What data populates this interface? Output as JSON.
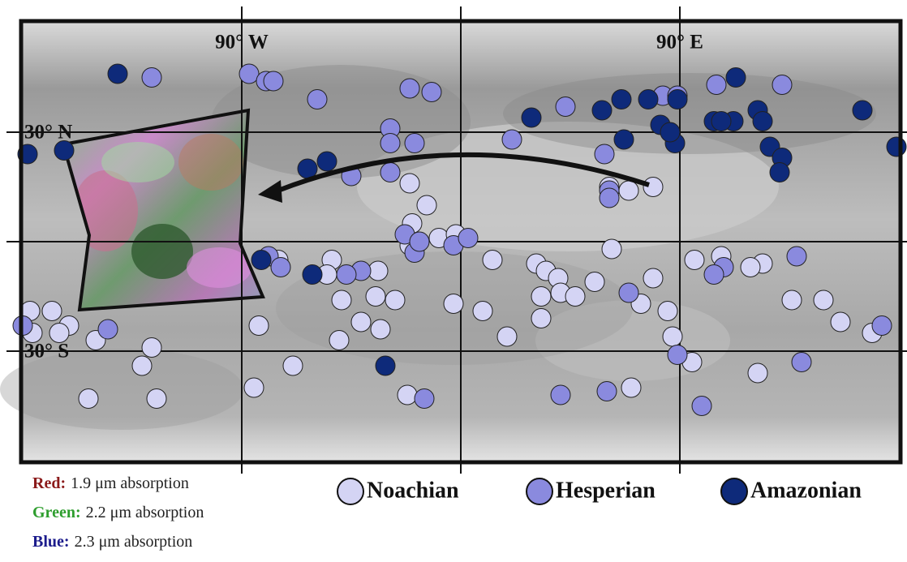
{
  "chart_data": {
    "type": "map",
    "xlim": [
      -180,
      180
    ],
    "ylim": [
      -60,
      60
    ],
    "xticks": [
      {
        "value": -90,
        "label": "90° W"
      },
      {
        "value": 0,
        "label": null
      },
      {
        "value": 90,
        "label": "90° E"
      }
    ],
    "yticks": [
      {
        "value": 30,
        "label": "30° N"
      },
      {
        "value": 0,
        "label": null
      },
      {
        "value": -30,
        "label": "30° S"
      }
    ],
    "series": [
      {
        "name": "Noachian",
        "color": "#d4d4f4",
        "lon": [
          79,
          69,
          61,
          -21,
          -14,
          -20,
          -9,
          -2,
          -21,
          -75,
          -53,
          -55,
          -34,
          -49,
          -35,
          -27,
          -41,
          -33,
          -50,
          -83,
          -69,
          -127,
          -131,
          -153,
          -125,
          -85,
          -22,
          -3,
          9,
          19,
          13,
          31,
          35,
          40,
          55,
          62,
          79,
          33,
          41,
          47,
          33,
          74,
          85,
          87,
          95,
          96,
          107,
          124,
          119,
          136,
          149,
          156,
          169,
          122,
          70,
          -177,
          -168,
          -176,
          -161,
          -165,
          -150
        ],
        "lat": [
          15,
          14,
          15,
          16,
          10,
          5,
          1,
          2,
          -1,
          -5,
          -5,
          -9,
          -8,
          -16,
          -15,
          -16,
          -22,
          -24,
          -27,
          -23,
          -34,
          -29,
          -34,
          -43,
          -43,
          -40,
          -42,
          -17,
          -19,
          -26,
          -5,
          -6,
          -8,
          -10,
          -11,
          -2,
          -10,
          -15,
          -14,
          -15,
          -21,
          -17,
          -19,
          -26,
          -33,
          -5,
          -4,
          -6,
          -7,
          -16,
          -16,
          -22,
          -25,
          -36,
          -40,
          -19,
          -19,
          -25,
          -23,
          -25,
          -27
        ]
      },
      {
        "name": "Hesperian",
        "color": "#8a8ade",
        "lon": [
          -127,
          -87,
          -80,
          -77,
          -59,
          -21,
          -12,
          -29,
          -29,
          -19,
          -45,
          -29,
          21,
          43,
          59,
          83,
          89,
          105,
          132,
          61,
          61,
          -23,
          -19,
          -17,
          -3,
          3,
          -79,
          -74,
          -41,
          -47,
          -145,
          -180,
          173,
          138,
          108,
          104,
          69,
          89,
          140,
          41,
          60,
          99,
          -15
        ],
        "lat": [
          45,
          46,
          44,
          44,
          39,
          42,
          41,
          31,
          27,
          27,
          18,
          19,
          28,
          37,
          24,
          40,
          40,
          43,
          43,
          14,
          12,
          2,
          -3,
          0,
          -1,
          1,
          -4,
          -7,
          -8,
          -9,
          -24,
          -23,
          -23,
          -4,
          -7,
          -9,
          -14,
          -31,
          -33,
          -42,
          -41,
          -45,
          -43
        ]
      },
      {
        "name": "Amazonian",
        "color": "#0e2a7a",
        "lon": [
          -141,
          -178,
          -163,
          -63,
          -55,
          -82,
          -61,
          -31,
          29,
          58,
          66,
          77,
          89,
          67,
          82,
          88,
          104,
          112,
          122,
          124,
          127,
          132,
          131,
          113,
          165,
          179,
          86,
          107
        ],
        "lat": [
          46,
          24,
          25,
          20,
          22,
          -5,
          -9,
          -34,
          34,
          36,
          39,
          39,
          39,
          28,
          32,
          27,
          33,
          33,
          36,
          33,
          26,
          23,
          19,
          45,
          36,
          26,
          30,
          33
        ]
      }
    ],
    "legend": [
      {
        "label": "Red:",
        "color": "#8b1a1a",
        "text": "1.9 μm absorption"
      },
      {
        "label": "Green:",
        "color": "#2e9e2e",
        "text": "2.2 μm absorption"
      },
      {
        "label": "Blue:",
        "color": "#1c1c8c",
        "text": "2.3 μm absorption"
      }
    ]
  }
}
